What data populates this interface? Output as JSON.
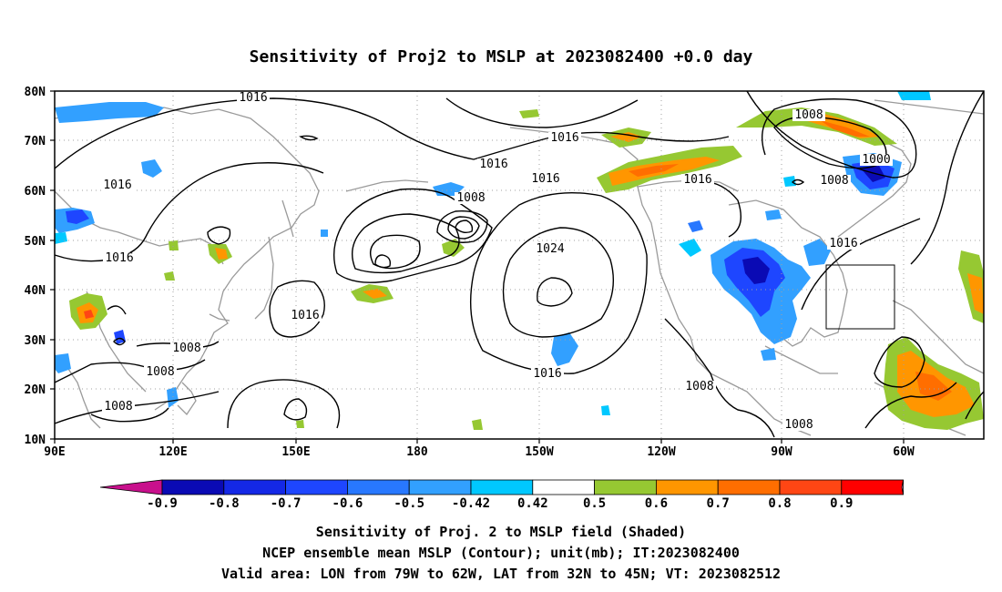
{
  "title": "Sensitivity of Proj2 to MSLP at 2023082400 +0.0 day",
  "map": {
    "lat_labels": [
      "80N",
      "70N",
      "60N",
      "50N",
      "40N",
      "30N",
      "20N",
      "10N"
    ],
    "lon_labels": [
      "90E",
      "120E",
      "150E",
      "180",
      "150W",
      "120W",
      "90W",
      "60W"
    ],
    "contour_labels": [
      "1016",
      "1016",
      "1016",
      "1016",
      "1016",
      "1016",
      "1016",
      "1016",
      "1008",
      "1008",
      "1008",
      "1008",
      "1008",
      "1008",
      "1000",
      "1024",
      "1016",
      "1016"
    ],
    "valid_area_box": {
      "lon": [
        "79W",
        "62W"
      ],
      "lat": [
        "32N",
        "45N"
      ]
    }
  },
  "colorbar": {
    "ticks": [
      "-0.9",
      "-0.8",
      "-0.7",
      "-0.6",
      "-0.5",
      "-0.42",
      "0.42",
      "0.5",
      "0.6",
      "0.7",
      "0.8",
      "0.9"
    ],
    "colors": [
      "#c8108c",
      "#0a0ab4",
      "#1428e6",
      "#1e46ff",
      "#2878ff",
      "#32a0ff",
      "#00c8ff",
      "#ffffff",
      "#96c832",
      "#ff9600",
      "#ff6e00",
      "#ff4614",
      "#ff0000",
      "#f0a0c8"
    ]
  },
  "captions": [
    "Sensitivity of Proj. 2 to MSLP field (Shaded)",
    "NCEP ensemble mean MSLP (Contour); unit(mb); IT:2023082400",
    "Valid area: LON from 79W to 62W, LAT from 32N to 45N; VT: 2023082512"
  ]
}
